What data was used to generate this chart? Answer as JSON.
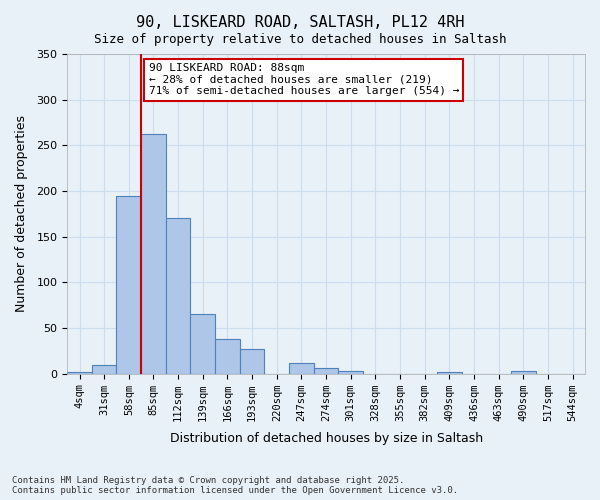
{
  "title_line1": "90, LISKEARD ROAD, SALTASH, PL12 4RH",
  "title_line2": "Size of property relative to detached houses in Saltash",
  "xlabel": "Distribution of detached houses by size in Saltash",
  "ylabel": "Number of detached properties",
  "categories": [
    "4sqm",
    "31sqm",
    "58sqm",
    "85sqm",
    "112sqm",
    "139sqm",
    "166sqm",
    "193sqm",
    "220sqm",
    "247sqm",
    "274sqm",
    "301sqm",
    "328sqm",
    "355sqm",
    "382sqm",
    "409sqm",
    "436sqm",
    "463sqm",
    "490sqm",
    "517sqm",
    "544sqm"
  ],
  "values": [
    2,
    10,
    195,
    262,
    170,
    65,
    38,
    27,
    0,
    12,
    6,
    3,
    0,
    0,
    0,
    2,
    0,
    0,
    3,
    0,
    0
  ],
  "bar_color": "#aec6e8",
  "bar_edge_color": "#4f81bd",
  "property_value_sqm": 88,
  "property_bin_index": 3,
  "annotation_text": "90 LISKEARD ROAD: 88sqm\n← 28% of detached houses are smaller (219)\n71% of semi-detached houses are larger (554) →",
  "annotation_box_color": "#ffffff",
  "annotation_box_edge_color": "#cc0000",
  "vline_color": "#cc0000",
  "ylim": [
    0,
    350
  ],
  "yticks": [
    0,
    50,
    100,
    150,
    200,
    250,
    300,
    350
  ],
  "grid_color": "#ccddee",
  "bg_color": "#e8f0f8",
  "footnote": "Contains HM Land Registry data © Crown copyright and database right 2025.\nContains public sector information licensed under the Open Government Licence v3.0."
}
